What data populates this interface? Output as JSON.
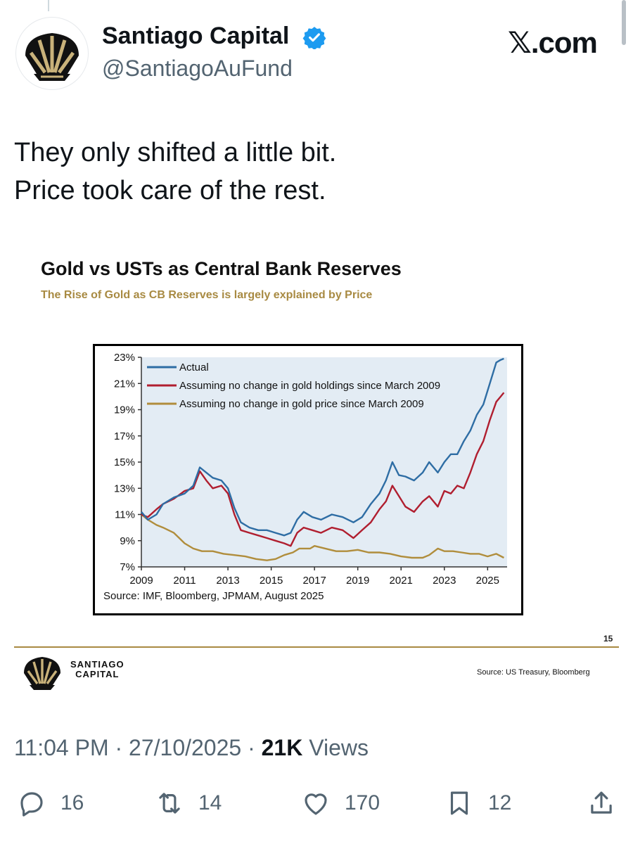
{
  "author": {
    "display_name": "Santiago Capital",
    "handle": "@SantiagoAuFund",
    "verified_icon": "verified-badge-icon",
    "badge_color": "#1d9bf0"
  },
  "brand": "𝕏.com",
  "post": {
    "lines": [
      "They only shifted a little bit.",
      "Price took care of the rest."
    ]
  },
  "slide": {
    "title": "Gold vs USTs as Central Bank Reserves",
    "subtitle": "The Rise of Gold as CB Reserves is largely explained by Price",
    "page_number": "15",
    "footer_brand_line1": "SANTIAGO",
    "footer_brand_line2": "CAPITAL",
    "footer_source": "Source: US Treasury, Bloomberg",
    "accent_color": "#a88a42"
  },
  "chart_data": {
    "type": "line",
    "title": "",
    "xlabel": "",
    "ylabel": "",
    "ylim": [
      7,
      23
    ],
    "xlim": [
      2009,
      2025.9
    ],
    "x_ticks": [
      "2009",
      "2011",
      "2013",
      "2015",
      "2017",
      "2019",
      "2021",
      "2023",
      "2025"
    ],
    "y_ticks": [
      "7%",
      "9%",
      "11%",
      "13%",
      "15%",
      "17%",
      "19%",
      "21%",
      "23%"
    ],
    "source_note": "Source: IMF, Bloomberg, JPMAM, August 2025",
    "legend_position": "top-left",
    "series": [
      {
        "name": "Actual",
        "color": "#2e6da4",
        "points": [
          [
            2009.0,
            11.2
          ],
          [
            2009.3,
            10.6
          ],
          [
            2009.7,
            11.0
          ],
          [
            2010.0,
            11.8
          ],
          [
            2010.5,
            12.3
          ],
          [
            2011.0,
            12.6
          ],
          [
            2011.4,
            13.2
          ],
          [
            2011.7,
            14.6
          ],
          [
            2012.0,
            14.2
          ],
          [
            2012.3,
            13.8
          ],
          [
            2012.7,
            13.6
          ],
          [
            2013.0,
            13.0
          ],
          [
            2013.3,
            11.5
          ],
          [
            2013.6,
            10.4
          ],
          [
            2014.0,
            10.0
          ],
          [
            2014.4,
            9.8
          ],
          [
            2014.8,
            9.8
          ],
          [
            2015.2,
            9.6
          ],
          [
            2015.6,
            9.4
          ],
          [
            2015.9,
            9.6
          ],
          [
            2016.2,
            10.6
          ],
          [
            2016.5,
            11.2
          ],
          [
            2016.9,
            10.8
          ],
          [
            2017.3,
            10.6
          ],
          [
            2017.8,
            11.0
          ],
          [
            2018.3,
            10.8
          ],
          [
            2018.8,
            10.4
          ],
          [
            2019.2,
            10.8
          ],
          [
            2019.6,
            11.8
          ],
          [
            2020.0,
            12.6
          ],
          [
            2020.3,
            13.6
          ],
          [
            2020.6,
            15.0
          ],
          [
            2020.9,
            14.0
          ],
          [
            2021.2,
            13.9
          ],
          [
            2021.6,
            13.6
          ],
          [
            2022.0,
            14.2
          ],
          [
            2022.3,
            15.0
          ],
          [
            2022.7,
            14.2
          ],
          [
            2023.0,
            15.0
          ],
          [
            2023.3,
            15.6
          ],
          [
            2023.6,
            15.6
          ],
          [
            2023.9,
            16.6
          ],
          [
            2024.2,
            17.4
          ],
          [
            2024.5,
            18.6
          ],
          [
            2024.8,
            19.4
          ],
          [
            2025.1,
            21.0
          ],
          [
            2025.4,
            22.6
          ],
          [
            2025.6,
            22.8
          ],
          [
            2025.75,
            22.9
          ]
        ]
      },
      {
        "name": "Assuming no change in gold holdings since March 2009",
        "color": "#b01e2f",
        "points": [
          [
            2009.0,
            11.0
          ],
          [
            2009.3,
            10.8
          ],
          [
            2009.7,
            11.4
          ],
          [
            2010.0,
            11.8
          ],
          [
            2010.5,
            12.2
          ],
          [
            2011.0,
            12.8
          ],
          [
            2011.4,
            13.0
          ],
          [
            2011.7,
            14.3
          ],
          [
            2012.0,
            13.6
          ],
          [
            2012.3,
            13.0
          ],
          [
            2012.7,
            13.2
          ],
          [
            2013.0,
            12.6
          ],
          [
            2013.3,
            11.0
          ],
          [
            2013.6,
            9.8
          ],
          [
            2014.0,
            9.6
          ],
          [
            2014.4,
            9.4
          ],
          [
            2014.8,
            9.2
          ],
          [
            2015.2,
            9.0
          ],
          [
            2015.6,
            8.8
          ],
          [
            2015.9,
            8.6
          ],
          [
            2016.2,
            9.6
          ],
          [
            2016.5,
            10.0
          ],
          [
            2016.9,
            9.8
          ],
          [
            2017.3,
            9.6
          ],
          [
            2017.8,
            10.0
          ],
          [
            2018.3,
            9.8
          ],
          [
            2018.8,
            9.2
          ],
          [
            2019.2,
            9.8
          ],
          [
            2019.6,
            10.4
          ],
          [
            2020.0,
            11.4
          ],
          [
            2020.3,
            12.0
          ],
          [
            2020.6,
            13.2
          ],
          [
            2020.9,
            12.4
          ],
          [
            2021.2,
            11.6
          ],
          [
            2021.6,
            11.2
          ],
          [
            2022.0,
            12.0
          ],
          [
            2022.3,
            12.4
          ],
          [
            2022.7,
            11.6
          ],
          [
            2023.0,
            12.8
          ],
          [
            2023.3,
            12.6
          ],
          [
            2023.6,
            13.2
          ],
          [
            2023.9,
            13.0
          ],
          [
            2024.2,
            14.2
          ],
          [
            2024.5,
            15.6
          ],
          [
            2024.8,
            16.6
          ],
          [
            2025.1,
            18.2
          ],
          [
            2025.4,
            19.6
          ],
          [
            2025.6,
            20.0
          ],
          [
            2025.75,
            20.3
          ]
        ]
      },
      {
        "name": "Assuming no change in gold price since March 2009",
        "color": "#b08d3c",
        "points": [
          [
            2009.0,
            11.0
          ],
          [
            2009.3,
            10.6
          ],
          [
            2009.7,
            10.2
          ],
          [
            2010.0,
            10.0
          ],
          [
            2010.5,
            9.6
          ],
          [
            2011.0,
            8.8
          ],
          [
            2011.4,
            8.4
          ],
          [
            2011.8,
            8.2
          ],
          [
            2012.3,
            8.2
          ],
          [
            2012.8,
            8.0
          ],
          [
            2013.3,
            7.9
          ],
          [
            2013.8,
            7.8
          ],
          [
            2014.3,
            7.6
          ],
          [
            2014.8,
            7.5
          ],
          [
            2015.2,
            7.6
          ],
          [
            2015.6,
            7.9
          ],
          [
            2016.0,
            8.1
          ],
          [
            2016.3,
            8.4
          ],
          [
            2016.8,
            8.4
          ],
          [
            2017.0,
            8.6
          ],
          [
            2017.5,
            8.4
          ],
          [
            2018.0,
            8.2
          ],
          [
            2018.5,
            8.2
          ],
          [
            2019.0,
            8.3
          ],
          [
            2019.5,
            8.1
          ],
          [
            2020.0,
            8.1
          ],
          [
            2020.5,
            8.0
          ],
          [
            2021.0,
            7.8
          ],
          [
            2021.5,
            7.7
          ],
          [
            2022.0,
            7.7
          ],
          [
            2022.3,
            7.9
          ],
          [
            2022.7,
            8.4
          ],
          [
            2023.0,
            8.2
          ],
          [
            2023.4,
            8.2
          ],
          [
            2023.8,
            8.1
          ],
          [
            2024.2,
            8.0
          ],
          [
            2024.6,
            8.0
          ],
          [
            2025.0,
            7.8
          ],
          [
            2025.4,
            8.0
          ],
          [
            2025.75,
            7.7
          ]
        ]
      }
    ]
  },
  "timestamp": {
    "time": "11:04 PM",
    "date": "27/10/2025",
    "views_count": "21K",
    "views_label": "Views"
  },
  "actions": {
    "replies": "16",
    "reposts": "14",
    "likes": "170",
    "bookmarks": "12"
  }
}
